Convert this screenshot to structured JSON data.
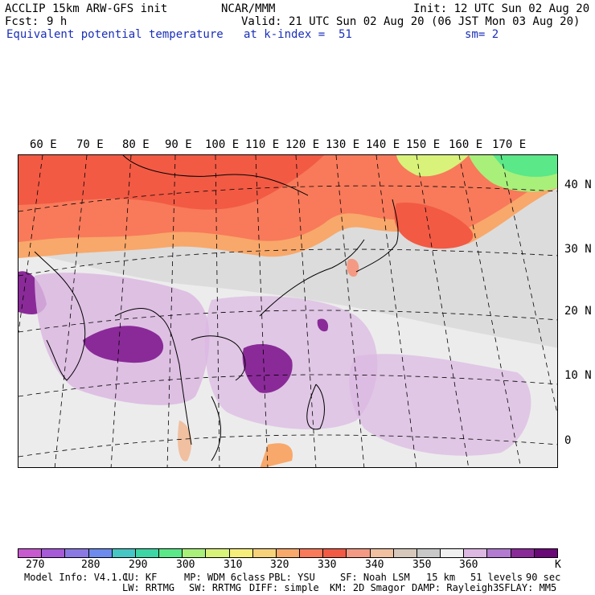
{
  "header": {
    "model": "ACCLIP 15km ARW-GFS init",
    "org": "NCAR/MMM",
    "init": "Init: 12 UTC Sun 02 Aug 20",
    "fcst_label": "Fcst:",
    "fcst_value": "9 h",
    "valid": "Valid: 21 UTC Sun 02 Aug 20 (06 JST Mon 03 Aug 20)",
    "field": "Equivalent potential temperature",
    "level": "at k-index =  51",
    "smooth": "sm= 2"
  },
  "map": {
    "lon_labels": [
      "60 E",
      "70 E",
      "80 E",
      "90 E",
      "100 E",
      "110 E",
      "120 E",
      "130 E",
      "140 E",
      "150 E",
      "160 E",
      "170 E"
    ],
    "lat_labels": [
      "40 N",
      "30 N",
      "20 N",
      "10 N",
      "0"
    ]
  },
  "colorbar": {
    "colors": [
      "#c85ad0",
      "#a75ad8",
      "#8b79e3",
      "#6c8bec",
      "#46c6c4",
      "#3dd6a4",
      "#5ae888",
      "#a8f07a",
      "#d8f27a",
      "#f6ee7a",
      "#f8d27a",
      "#f8a86a",
      "#f87a5a",
      "#f25a44",
      "#f49a84",
      "#f0c0a0",
      "#d7c8bc",
      "#c8c8c8",
      "#f0f0f0",
      "#dcb8e2",
      "#b27ad0",
      "#8a2a98",
      "#6a0878"
    ],
    "labels": [
      "270",
      "280",
      "290",
      "300",
      "310",
      "320",
      "330",
      "340",
      "350",
      "360"
    ],
    "unit": "K"
  },
  "footer": {
    "line1": [
      "Model Info: V4.1.1",
      "CU: KF",
      "MP: WDM 6class",
      "PBL: YSU",
      "SF: Noah LSM",
      "15 km",
      "51 levels",
      "90 sec"
    ],
    "line2": [
      "LW: RRTMG",
      "SW: RRTMG",
      "DIFF: simple",
      "KM: 2D Smagor",
      "DAMP: Rayleigh3",
      "SFLAY: MM5"
    ]
  }
}
